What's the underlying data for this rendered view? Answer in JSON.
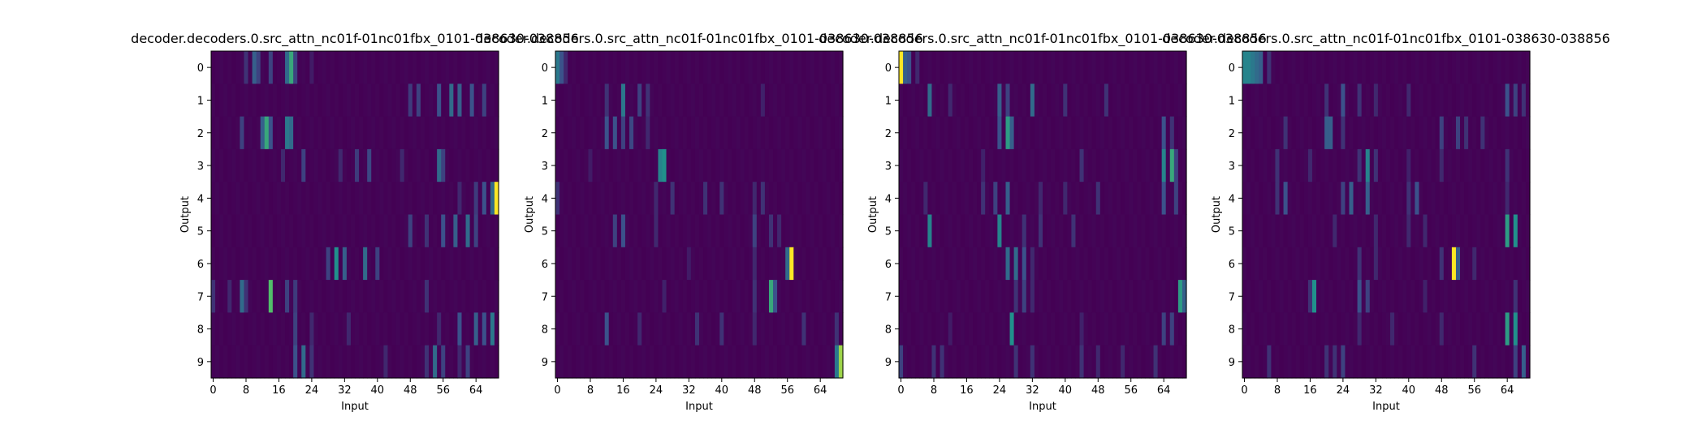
{
  "figure": {
    "background": "#ffffff",
    "colormap": "viridis",
    "colorscale": [
      "#440154",
      "#3b528b",
      "#21918c",
      "#5ec962",
      "#fde725"
    ]
  },
  "chart_data": [
    {
      "type": "heatmap",
      "title": "decoder.decoders.0.src_attn_nc01f-01nc01fbx_0101-038630-038856",
      "xlabel": "Input",
      "ylabel": "Output",
      "x_ticks": [
        0,
        8,
        16,
        24,
        32,
        40,
        48,
        56,
        64
      ],
      "y_ticks": [
        0,
        1,
        2,
        3,
        4,
        5,
        6,
        7,
        8,
        9
      ],
      "n_inputs": 70,
      "n_outputs": 10,
      "peaks": [
        [
          [
            8,
            0.15
          ],
          [
            10,
            0.3
          ],
          [
            11,
            0.2
          ],
          [
            14,
            0.2
          ],
          [
            18,
            0.35
          ],
          [
            19,
            0.6
          ],
          [
            20,
            0.2
          ],
          [
            24,
            0.08
          ]
        ],
        [
          [
            48,
            0.18
          ],
          [
            50,
            0.2
          ],
          [
            55,
            0.25
          ],
          [
            58,
            0.35
          ],
          [
            60,
            0.3
          ],
          [
            63,
            0.25
          ],
          [
            66,
            0.2
          ]
        ],
        [
          [
            7,
            0.2
          ],
          [
            12,
            0.3
          ],
          [
            13,
            0.6
          ],
          [
            14,
            0.25
          ],
          [
            18,
            0.4
          ],
          [
            19,
            0.35
          ]
        ],
        [
          [
            17,
            0.12
          ],
          [
            22,
            0.2
          ],
          [
            31,
            0.12
          ],
          [
            35,
            0.18
          ],
          [
            38,
            0.22
          ],
          [
            46,
            0.12
          ],
          [
            55,
            0.35
          ],
          [
            56,
            0.2
          ]
        ],
        [
          [
            60,
            0.12
          ],
          [
            64,
            0.18
          ],
          [
            66,
            0.25
          ],
          [
            68,
            0.35
          ],
          [
            69,
            1.0
          ]
        ],
        [
          [
            48,
            0.2
          ],
          [
            52,
            0.15
          ],
          [
            56,
            0.25
          ],
          [
            59,
            0.3
          ],
          [
            62,
            0.35
          ],
          [
            64,
            0.2
          ]
        ],
        [
          [
            28,
            0.2
          ],
          [
            30,
            0.5
          ],
          [
            32,
            0.3
          ],
          [
            37,
            0.35
          ],
          [
            40,
            0.2
          ]
        ],
        [
          [
            0,
            0.15
          ],
          [
            4,
            0.12
          ],
          [
            7,
            0.35
          ],
          [
            8,
            0.15
          ],
          [
            14,
            0.7
          ],
          [
            18,
            0.2
          ],
          [
            20,
            0.18
          ],
          [
            52,
            0.15
          ]
        ],
        [
          [
            20,
            0.2
          ],
          [
            24,
            0.12
          ],
          [
            33,
            0.12
          ],
          [
            55,
            0.12
          ],
          [
            60,
            0.25
          ],
          [
            64,
            0.3
          ],
          [
            66,
            0.25
          ],
          [
            68,
            0.4
          ]
        ],
        [
          [
            20,
            0.25
          ],
          [
            22,
            0.35
          ],
          [
            24,
            0.15
          ],
          [
            42,
            0.12
          ],
          [
            52,
            0.15
          ],
          [
            54,
            0.35
          ],
          [
            56,
            0.2
          ],
          [
            60,
            0.12
          ],
          [
            62,
            0.2
          ]
        ]
      ]
    },
    {
      "type": "heatmap",
      "title": "decoder.decoders.0.src_attn_nc01f-01nc01fbx_0101-038630-038856",
      "xlabel": "Input",
      "ylabel": "Output",
      "x_ticks": [
        0,
        8,
        16,
        24,
        32,
        40,
        48,
        56,
        64
      ],
      "y_ticks": [
        0,
        1,
        2,
        3,
        4,
        5,
        6,
        7,
        8,
        9
      ],
      "n_inputs": 70,
      "n_outputs": 10,
      "peaks": [
        [
          [
            0,
            0.4
          ],
          [
            1,
            0.25
          ],
          [
            2,
            0.12
          ]
        ],
        [
          [
            12,
            0.15
          ],
          [
            16,
            0.4
          ],
          [
            20,
            0.2
          ],
          [
            22,
            0.15
          ],
          [
            50,
            0.1
          ]
        ],
        [
          [
            12,
            0.25
          ],
          [
            14,
            0.25
          ],
          [
            16,
            0.2
          ],
          [
            18,
            0.22
          ],
          [
            22,
            0.12
          ]
        ],
        [
          [
            25,
            0.45
          ],
          [
            26,
            0.5
          ],
          [
            8,
            0.08
          ]
        ],
        [
          [
            0,
            0.15
          ],
          [
            24,
            0.12
          ],
          [
            28,
            0.15
          ],
          [
            36,
            0.15
          ],
          [
            40,
            0.15
          ],
          [
            48,
            0.12
          ],
          [
            50,
            0.15
          ]
        ],
        [
          [
            14,
            0.2
          ],
          [
            16,
            0.25
          ],
          [
            24,
            0.12
          ],
          [
            48,
            0.2
          ],
          [
            52,
            0.15
          ],
          [
            54,
            0.12
          ]
        ],
        [
          [
            32,
            0.08
          ],
          [
            48,
            0.12
          ],
          [
            56,
            0.35
          ],
          [
            57,
            1.0
          ]
        ],
        [
          [
            26,
            0.1
          ],
          [
            48,
            0.15
          ],
          [
            52,
            0.6
          ],
          [
            53,
            0.25
          ]
        ],
        [
          [
            12,
            0.25
          ],
          [
            20,
            0.12
          ],
          [
            34,
            0.15
          ],
          [
            40,
            0.15
          ],
          [
            48,
            0.12
          ],
          [
            60,
            0.15
          ],
          [
            68,
            0.15
          ]
        ],
        [
          [
            68,
            0.4
          ],
          [
            69,
            0.85
          ]
        ]
      ]
    },
    {
      "type": "heatmap",
      "title": "decoder.decoders.0.src_attn_nc01f-01nc01fbx_0101-038630-038856",
      "xlabel": "Input",
      "ylabel": "Output",
      "x_ticks": [
        0,
        8,
        16,
        24,
        32,
        40,
        48,
        56,
        64
      ],
      "y_ticks": [
        0,
        1,
        2,
        3,
        4,
        5,
        6,
        7,
        8,
        9
      ],
      "n_inputs": 70,
      "n_outputs": 10,
      "peaks": [
        [
          [
            0,
            1.0
          ],
          [
            1,
            0.3
          ],
          [
            2,
            0.25
          ],
          [
            4,
            0.12
          ]
        ],
        [
          [
            7,
            0.35
          ],
          [
            12,
            0.12
          ],
          [
            24,
            0.3
          ],
          [
            26,
            0.2
          ],
          [
            32,
            0.35
          ],
          [
            40,
            0.15
          ],
          [
            50,
            0.15
          ]
        ],
        [
          [
            24,
            0.25
          ],
          [
            26,
            0.55
          ],
          [
            27,
            0.3
          ],
          [
            64,
            0.25
          ],
          [
            66,
            0.15
          ]
        ],
        [
          [
            20,
            0.1
          ],
          [
            44,
            0.15
          ],
          [
            64,
            0.45
          ],
          [
            66,
            0.6
          ],
          [
            67,
            0.2
          ]
        ],
        [
          [
            6,
            0.12
          ],
          [
            20,
            0.15
          ],
          [
            23,
            0.2
          ],
          [
            26,
            0.3
          ],
          [
            34,
            0.12
          ],
          [
            40,
            0.12
          ],
          [
            48,
            0.15
          ],
          [
            64,
            0.25
          ],
          [
            67,
            0.2
          ]
        ],
        [
          [
            7,
            0.45
          ],
          [
            24,
            0.45
          ],
          [
            30,
            0.15
          ],
          [
            34,
            0.15
          ],
          [
            42,
            0.15
          ]
        ],
        [
          [
            26,
            0.35
          ],
          [
            28,
            0.35
          ],
          [
            30,
            0.25
          ],
          [
            32,
            0.12
          ]
        ],
        [
          [
            28,
            0.15
          ],
          [
            30,
            0.2
          ],
          [
            32,
            0.12
          ],
          [
            68,
            0.55
          ],
          [
            69,
            0.3
          ]
        ],
        [
          [
            27,
            0.5
          ],
          [
            12,
            0.08
          ],
          [
            44,
            0.1
          ],
          [
            64,
            0.2
          ],
          [
            66,
            0.2
          ]
        ],
        [
          [
            0,
            0.2
          ],
          [
            8,
            0.15
          ],
          [
            10,
            0.15
          ],
          [
            28,
            0.15
          ],
          [
            32,
            0.15
          ],
          [
            44,
            0.15
          ],
          [
            48,
            0.12
          ],
          [
            54,
            0.12
          ],
          [
            62,
            0.15
          ]
        ]
      ]
    },
    {
      "type": "heatmap",
      "title": "decoder.decoders.0.src_attn_nc01f-01nc01fbx_0101-038630-038856",
      "xlabel": "Input",
      "ylabel": "Output",
      "x_ticks": [
        0,
        8,
        16,
        24,
        32,
        40,
        48,
        56,
        64
      ],
      "y_ticks": [
        0,
        1,
        2,
        3,
        4,
        5,
        6,
        7,
        8,
        9
      ],
      "n_inputs": 70,
      "n_outputs": 10,
      "peaks": [
        [
          [
            0,
            0.45
          ],
          [
            1,
            0.45
          ],
          [
            2,
            0.4
          ],
          [
            3,
            0.35
          ],
          [
            4,
            0.3
          ],
          [
            6,
            0.15
          ]
        ],
        [
          [
            20,
            0.15
          ],
          [
            24,
            0.25
          ],
          [
            28,
            0.15
          ],
          [
            32,
            0.12
          ],
          [
            40,
            0.12
          ],
          [
            64,
            0.25
          ],
          [
            66,
            0.2
          ],
          [
            68,
            0.15
          ]
        ],
        [
          [
            10,
            0.15
          ],
          [
            20,
            0.3
          ],
          [
            21,
            0.3
          ],
          [
            24,
            0.15
          ],
          [
            48,
            0.2
          ],
          [
            52,
            0.2
          ],
          [
            54,
            0.15
          ],
          [
            58,
            0.15
          ]
        ],
        [
          [
            8,
            0.15
          ],
          [
            16,
            0.12
          ],
          [
            28,
            0.15
          ],
          [
            30,
            0.45
          ],
          [
            32,
            0.15
          ],
          [
            40,
            0.1
          ],
          [
            48,
            0.12
          ],
          [
            64,
            0.15
          ]
        ],
        [
          [
            8,
            0.15
          ],
          [
            10,
            0.25
          ],
          [
            24,
            0.2
          ],
          [
            26,
            0.3
          ],
          [
            30,
            0.3
          ],
          [
            40,
            0.15
          ],
          [
            42,
            0.25
          ],
          [
            64,
            0.12
          ]
        ],
        [
          [
            22,
            0.12
          ],
          [
            32,
            0.12
          ],
          [
            40,
            0.12
          ],
          [
            44,
            0.12
          ],
          [
            64,
            0.55
          ],
          [
            66,
            0.5
          ]
        ],
        [
          [
            28,
            0.15
          ],
          [
            32,
            0.12
          ],
          [
            48,
            0.15
          ],
          [
            51,
            1.0
          ],
          [
            52,
            0.3
          ],
          [
            56,
            0.12
          ]
        ],
        [
          [
            16,
            0.15
          ],
          [
            17,
            0.5
          ],
          [
            28,
            0.25
          ],
          [
            30,
            0.2
          ],
          [
            44,
            0.1
          ],
          [
            66,
            0.15
          ]
        ],
        [
          [
            28,
            0.12
          ],
          [
            36,
            0.12
          ],
          [
            48,
            0.12
          ],
          [
            64,
            0.55
          ],
          [
            66,
            0.5
          ]
        ],
        [
          [
            6,
            0.15
          ],
          [
            20,
            0.15
          ],
          [
            22,
            0.15
          ],
          [
            24,
            0.2
          ],
          [
            56,
            0.15
          ],
          [
            66,
            0.2
          ],
          [
            68,
            0.3
          ]
        ]
      ]
    }
  ]
}
